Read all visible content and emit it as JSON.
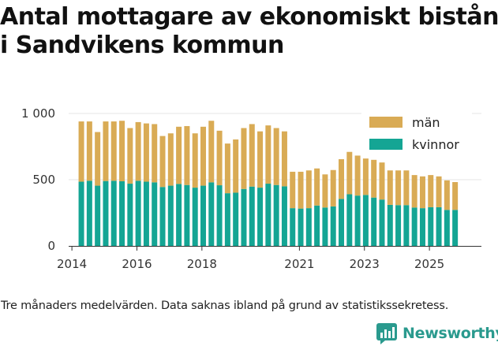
{
  "header": {
    "title_line1": "Antal mottagare av ekonomiskt bistånd",
    "title_line2": "i Sandvikens kommun"
  },
  "footer": {
    "note": "Tre månaders medelvärden. Data saknas ibland på grund av statistikssekretess.",
    "brand": "Newsworthy"
  },
  "colors": {
    "man": "#d9ab55",
    "kvinnor": "#14a594",
    "axis": "#333333",
    "grid": "#e6e6e6",
    "brand": "#2a9a8e"
  },
  "chart_data": {
    "type": "bar",
    "stacked": true,
    "title": "Antal mottagare av ekonomiskt bistånd i Sandvikens kommun",
    "xlabel": "",
    "ylabel": "",
    "ylim": [
      0,
      1000
    ],
    "yticks": [
      0,
      500,
      1000
    ],
    "ytick_labels": [
      "0",
      "500",
      "1 000"
    ],
    "xlim": [
      2013.9,
      2026.6
    ],
    "xticks": [
      2014,
      2016,
      2018,
      2021,
      2023,
      2025
    ],
    "xtick_labels": [
      "2014",
      "2016",
      "2018",
      "2021",
      "2023",
      "2025"
    ],
    "legend_position": "top-right",
    "series": [
      {
        "name": "kvinnor",
        "color": "#14a594",
        "values": [
          {
            "t": 2014.29,
            "v": 485
          },
          {
            "t": 2014.54,
            "v": 492
          },
          {
            "t": 2014.79,
            "v": 455
          },
          {
            "t": 2015.04,
            "v": 490
          },
          {
            "t": 2015.29,
            "v": 492
          },
          {
            "t": 2015.54,
            "v": 488
          },
          {
            "t": 2015.79,
            "v": 470
          },
          {
            "t": 2016.04,
            "v": 492
          },
          {
            "t": 2016.29,
            "v": 485
          },
          {
            "t": 2016.54,
            "v": 480
          },
          {
            "t": 2016.79,
            "v": 445
          },
          {
            "t": 2017.04,
            "v": 455
          },
          {
            "t": 2017.29,
            "v": 468
          },
          {
            "t": 2017.54,
            "v": 460
          },
          {
            "t": 2017.79,
            "v": 440
          },
          {
            "t": 2018.04,
            "v": 455
          },
          {
            "t": 2018.29,
            "v": 480
          },
          {
            "t": 2018.54,
            "v": 458
          },
          {
            "t": 2018.79,
            "v": 398
          },
          {
            "t": 2019.04,
            "v": 402
          },
          {
            "t": 2019.29,
            "v": 430
          },
          {
            "t": 2019.54,
            "v": 448
          },
          {
            "t": 2019.79,
            "v": 440
          },
          {
            "t": 2020.04,
            "v": 470
          },
          {
            "t": 2020.29,
            "v": 460
          },
          {
            "t": 2020.54,
            "v": 450
          },
          {
            "t": 2020.79,
            "v": 285
          },
          {
            "t": 2021.04,
            "v": 282
          },
          {
            "t": 2021.29,
            "v": 285
          },
          {
            "t": 2021.54,
            "v": 305
          },
          {
            "t": 2021.79,
            "v": 290
          },
          {
            "t": 2022.04,
            "v": 298
          },
          {
            "t": 2022.29,
            "v": 355
          },
          {
            "t": 2022.54,
            "v": 390
          },
          {
            "t": 2022.79,
            "v": 380
          },
          {
            "t": 2023.04,
            "v": 385
          },
          {
            "t": 2023.29,
            "v": 365
          },
          {
            "t": 2023.54,
            "v": 350
          },
          {
            "t": 2023.79,
            "v": 310
          },
          {
            "t": 2024.04,
            "v": 308
          },
          {
            "t": 2024.29,
            "v": 308
          },
          {
            "t": 2024.54,
            "v": 290
          },
          {
            "t": 2024.79,
            "v": 285
          },
          {
            "t": 2025.04,
            "v": 292
          },
          {
            "t": 2025.29,
            "v": 292
          },
          {
            "t": 2025.54,
            "v": 272
          },
          {
            "t": 2025.79,
            "v": 272
          }
        ]
      },
      {
        "name": "män",
        "color": "#d9ab55",
        "values": [
          {
            "t": 2014.29,
            "v": 455
          },
          {
            "t": 2014.54,
            "v": 448
          },
          {
            "t": 2014.79,
            "v": 405
          },
          {
            "t": 2015.04,
            "v": 450
          },
          {
            "t": 2015.29,
            "v": 448
          },
          {
            "t": 2015.54,
            "v": 457
          },
          {
            "t": 2015.79,
            "v": 420
          },
          {
            "t": 2016.04,
            "v": 443
          },
          {
            "t": 2016.29,
            "v": 440
          },
          {
            "t": 2016.54,
            "v": 440
          },
          {
            "t": 2016.79,
            "v": 385
          },
          {
            "t": 2017.04,
            "v": 395
          },
          {
            "t": 2017.29,
            "v": 432
          },
          {
            "t": 2017.54,
            "v": 445
          },
          {
            "t": 2017.79,
            "v": 410
          },
          {
            "t": 2018.04,
            "v": 445
          },
          {
            "t": 2018.29,
            "v": 465
          },
          {
            "t": 2018.54,
            "v": 412
          },
          {
            "t": 2018.79,
            "v": 375
          },
          {
            "t": 2019.04,
            "v": 402
          },
          {
            "t": 2019.29,
            "v": 460
          },
          {
            "t": 2019.54,
            "v": 472
          },
          {
            "t": 2019.79,
            "v": 425
          },
          {
            "t": 2020.04,
            "v": 440
          },
          {
            "t": 2020.29,
            "v": 430
          },
          {
            "t": 2020.54,
            "v": 415
          },
          {
            "t": 2020.79,
            "v": 275
          },
          {
            "t": 2021.04,
            "v": 278
          },
          {
            "t": 2021.29,
            "v": 285
          },
          {
            "t": 2021.54,
            "v": 280
          },
          {
            "t": 2021.79,
            "v": 250
          },
          {
            "t": 2022.04,
            "v": 275
          },
          {
            "t": 2022.29,
            "v": 300
          },
          {
            "t": 2022.54,
            "v": 320
          },
          {
            "t": 2022.79,
            "v": 302
          },
          {
            "t": 2023.04,
            "v": 275
          },
          {
            "t": 2023.29,
            "v": 285
          },
          {
            "t": 2023.54,
            "v": 280
          },
          {
            "t": 2023.79,
            "v": 260
          },
          {
            "t": 2024.04,
            "v": 262
          },
          {
            "t": 2024.29,
            "v": 262
          },
          {
            "t": 2024.54,
            "v": 245
          },
          {
            "t": 2024.79,
            "v": 240
          },
          {
            "t": 2025.04,
            "v": 243
          },
          {
            "t": 2025.29,
            "v": 233
          },
          {
            "t": 2025.54,
            "v": 223
          },
          {
            "t": 2025.79,
            "v": 210
          }
        ]
      }
    ]
  }
}
